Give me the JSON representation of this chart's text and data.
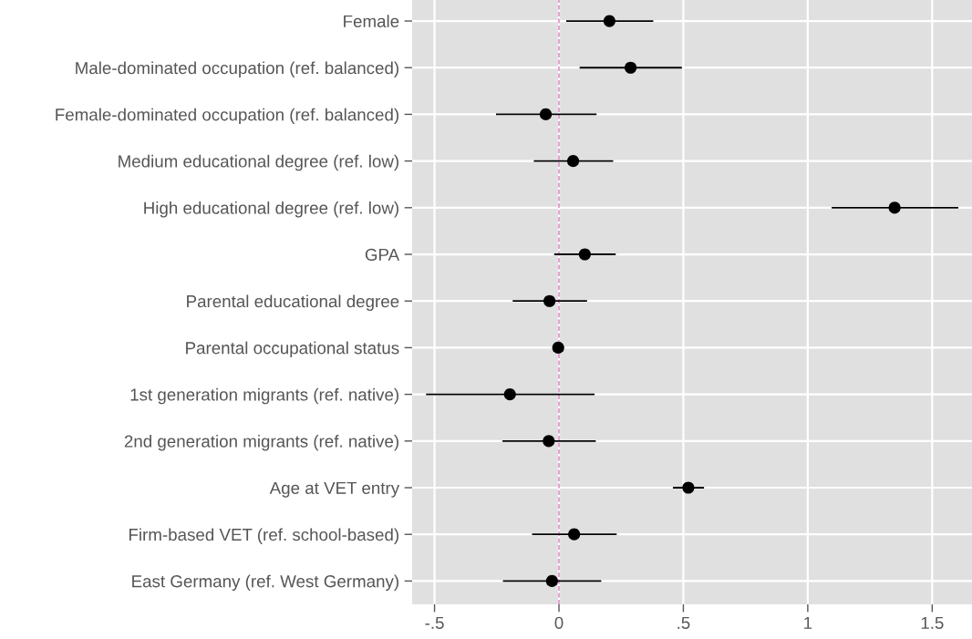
{
  "chart_data": {
    "type": "scatter",
    "orientation": "horizontal",
    "categories": [
      "Female",
      "Male-dominated occupation (ref. balanced)",
      "Female-dominated occupation (ref. balanced)",
      "Medium educational degree (ref. low)",
      "High educational degree (ref. low)",
      "GPA",
      "Parental educational degree",
      "Parental occupational status",
      "1st generation migrants (ref. native)",
      "2nd generation migrants (ref. native)",
      "Age at VET entry",
      "Firm-based VET (ref. school-based)",
      "East Germany (ref. West Germany)"
    ],
    "values": [
      0.203,
      0.288,
      -0.053,
      0.057,
      1.349,
      0.104,
      -0.038,
      -0.003,
      -0.197,
      -0.041,
      0.52,
      0.061,
      -0.028
    ],
    "errors": [
      [
        0.029,
        0.379
      ],
      [
        0.083,
        0.494
      ],
      [
        -0.253,
        0.151
      ],
      [
        -0.101,
        0.218
      ],
      [
        1.096,
        1.605
      ],
      [
        -0.019,
        0.228
      ],
      [
        -0.186,
        0.113
      ],
      null,
      [
        -0.534,
        0.143
      ],
      [
        -0.227,
        0.148
      ],
      [
        0.458,
        0.583
      ],
      [
        -0.108,
        0.232
      ],
      [
        -0.225,
        0.17
      ]
    ],
    "color": "#000000",
    "marker": "circle",
    "grid": true,
    "xlim": [
      -0.59,
      1.66
    ],
    "xticks": [
      {
        "value": -0.5,
        "label": "-.5"
      },
      0,
      {
        "value": 0.5,
        "label": ".5"
      },
      1,
      1.5
    ],
    "ref_lines": [
      {
        "axis": "x",
        "value": 0,
        "color": "#d070b0",
        "line_style": "dashed"
      }
    ]
  }
}
